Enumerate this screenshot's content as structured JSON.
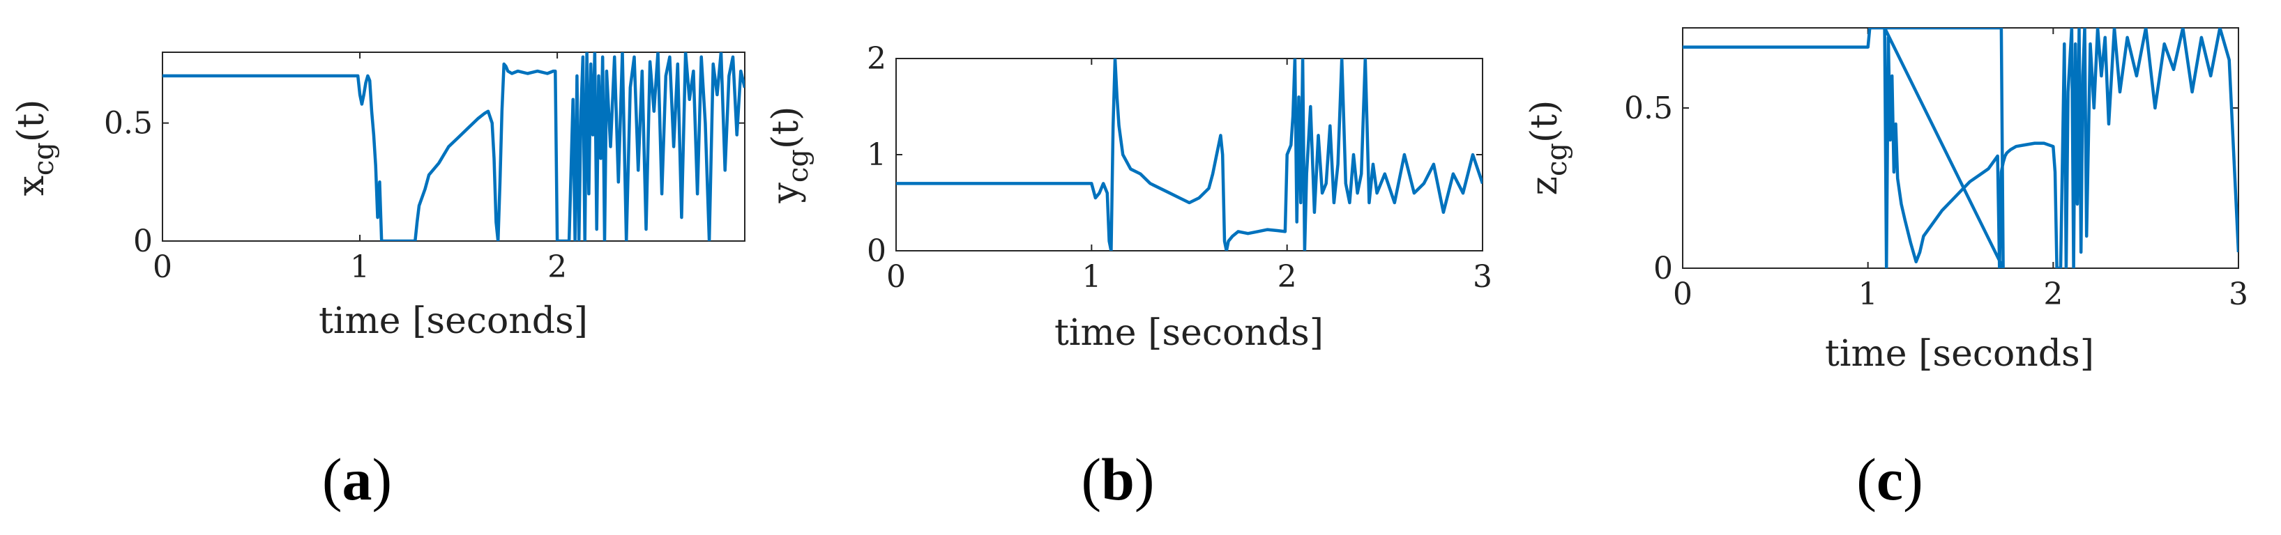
{
  "figure": {
    "colors": {
      "line": "#0072BD",
      "axis": "#262626",
      "text": "#222222"
    },
    "panel_labels": [
      {
        "open": "(",
        "letter": "a",
        "close": ")"
      },
      {
        "open": "(",
        "letter": "b",
        "close": ")"
      },
      {
        "open": "(",
        "letter": "c",
        "close": ")"
      }
    ]
  },
  "chart_data": [
    {
      "type": "line",
      "xlabel": "time [seconds]",
      "ylabel": {
        "var": "x",
        "sub": "cg",
        "arg": "(t)"
      },
      "xlim": [
        0,
        2.95
      ],
      "ylim": [
        0,
        0.8
      ],
      "xticks": [
        0,
        1,
        2
      ],
      "yticks": [
        0,
        0.5
      ],
      "series": [
        {
          "x": [
            0,
            0.99,
            1.0,
            1.01,
            1.02,
            1.03,
            1.04,
            1.05,
            1.06,
            1.07,
            1.08,
            1.09,
            1.1,
            1.11,
            1.12,
            1.15,
            1.2,
            1.25,
            1.28,
            1.29,
            1.3,
            1.33,
            1.35,
            1.4,
            1.45,
            1.5,
            1.55,
            1.6,
            1.63,
            1.65,
            1.67,
            1.68,
            1.69,
            1.7,
            1.71,
            1.72,
            1.73,
            1.74,
            1.75,
            1.77,
            1.8,
            1.85,
            1.9,
            1.95,
            1.98,
            1.99,
            2.0,
            2.02,
            2.04,
            2.05,
            2.06,
            2.07,
            2.08,
            2.09,
            2.1,
            2.11,
            2.12,
            2.13,
            2.14,
            2.15,
            2.16,
            2.17,
            2.18,
            2.19,
            2.2,
            2.21,
            2.22,
            2.23,
            2.24,
            2.25,
            2.27,
            2.29,
            2.31,
            2.33,
            2.35,
            2.37,
            2.39,
            2.41,
            2.43,
            2.45,
            2.47,
            2.49,
            2.51,
            2.53,
            2.55,
            2.57,
            2.59,
            2.61,
            2.63,
            2.65,
            2.67,
            2.69,
            2.71,
            2.73,
            2.75,
            2.77,
            2.79,
            2.81,
            2.83,
            2.85,
            2.87,
            2.89,
            2.91,
            2.93,
            2.95
          ],
          "y": [
            0.7,
            0.7,
            0.62,
            0.58,
            0.62,
            0.67,
            0.7,
            0.68,
            0.55,
            0.45,
            0.32,
            0.1,
            0.25,
            0.0,
            0.0,
            0.0,
            0.0,
            0.0,
            0.0,
            0.08,
            0.15,
            0.22,
            0.28,
            0.33,
            0.4,
            0.44,
            0.48,
            0.52,
            0.54,
            0.55,
            0.5,
            0.35,
            0.08,
            0.0,
            0.25,
            0.55,
            0.75,
            0.74,
            0.72,
            0.71,
            0.72,
            0.71,
            0.72,
            0.71,
            0.72,
            0.72,
            0.0,
            0.0,
            0.0,
            0.0,
            0.0,
            0.3,
            0.6,
            0.0,
            0.7,
            0.0,
            0.55,
            0.78,
            0.0,
            0.8,
            0.2,
            0.75,
            0.45,
            0.8,
            0.05,
            0.7,
            0.35,
            0.78,
            0.0,
            0.72,
            0.4,
            0.78,
            0.25,
            0.8,
            0.0,
            0.65,
            0.78,
            0.3,
            0.72,
            0.05,
            0.76,
            0.55,
            0.8,
            0.2,
            0.7,
            0.78,
            0.4,
            0.75,
            0.1,
            0.8,
            0.6,
            0.72,
            0.2,
            0.78,
            0.5,
            0.0,
            0.75,
            0.62,
            0.8,
            0.3,
            0.7,
            0.78,
            0.45,
            0.72,
            0.65
          ]
        }
      ]
    },
    {
      "type": "line",
      "xlabel": "time [seconds]",
      "ylabel": {
        "var": "y",
        "sub": "cg",
        "arg": "(t)"
      },
      "xlim": [
        0,
        3
      ],
      "ylim": [
        0,
        2
      ],
      "xticks": [
        0,
        1,
        2,
        3
      ],
      "yticks": [
        0,
        1,
        2
      ],
      "series": [
        {
          "x": [
            0,
            1.0,
            1.02,
            1.04,
            1.06,
            1.08,
            1.09,
            1.1,
            1.11,
            1.12,
            1.13,
            1.14,
            1.16,
            1.2,
            1.25,
            1.3,
            1.35,
            1.4,
            1.45,
            1.5,
            1.55,
            1.6,
            1.62,
            1.64,
            1.66,
            1.67,
            1.68,
            1.69,
            1.7,
            1.72,
            1.75,
            1.8,
            1.85,
            1.9,
            1.95,
            1.99,
            2.0,
            2.02,
            2.03,
            2.04,
            2.05,
            2.06,
            2.07,
            2.08,
            2.09,
            2.1,
            2.12,
            2.14,
            2.16,
            2.18,
            2.2,
            2.22,
            2.24,
            2.26,
            2.28,
            2.3,
            2.32,
            2.34,
            2.36,
            2.38,
            2.4,
            2.42,
            2.44,
            2.46,
            2.5,
            2.55,
            2.6,
            2.65,
            2.7,
            2.75,
            2.8,
            2.85,
            2.9,
            2.95,
            3.0
          ],
          "y": [
            0.7,
            0.7,
            0.55,
            0.6,
            0.7,
            0.6,
            0.1,
            0.0,
            1.3,
            2.0,
            1.6,
            1.3,
            1.0,
            0.85,
            0.8,
            0.7,
            0.65,
            0.6,
            0.55,
            0.5,
            0.55,
            0.65,
            0.8,
            1.0,
            1.2,
            1.0,
            0.1,
            0.0,
            0.1,
            0.15,
            0.2,
            0.18,
            0.2,
            0.22,
            0.21,
            0.2,
            1.0,
            1.1,
            1.4,
            2.0,
            0.3,
            1.6,
            0.5,
            2.0,
            0.0,
            0.8,
            1.5,
            0.4,
            1.2,
            0.6,
            0.7,
            1.3,
            0.5,
            0.9,
            2.0,
            0.7,
            0.5,
            1.0,
            0.6,
            0.8,
            2.0,
            0.5,
            0.9,
            0.6,
            0.8,
            0.5,
            1.0,
            0.6,
            0.7,
            0.9,
            0.4,
            0.8,
            0.6,
            1.0,
            0.7
          ]
        }
      ]
    },
    {
      "type": "line",
      "xlabel": "time [seconds]",
      "ylabel": {
        "var": "z",
        "sub": "cg",
        "arg": "(t)"
      },
      "xlim": [
        0,
        3
      ],
      "ylim": [
        0,
        0.75
      ],
      "xticks": [
        0,
        1,
        2,
        3
      ],
      "yticks": [
        0,
        0.5
      ],
      "series": [
        {
          "x": [
            0,
            1.0,
            1.01,
            1.72,
            1.73,
            1.09,
            1.1,
            1.11,
            1.12,
            1.13,
            1.14,
            1.15,
            1.16,
            1.18,
            1.2,
            1.23,
            1.26,
            1.28,
            1.3,
            1.35,
            1.4,
            1.45,
            1.5,
            1.55,
            1.6,
            1.65,
            1.7,
            1.71,
            1.72,
            1.73,
            1.74,
            1.75,
            1.77,
            1.8,
            1.85,
            1.9,
            1.95,
            2.0,
            2.01,
            2.02,
            2.04,
            2.06,
            2.07,
            2.08,
            2.1,
            2.11,
            2.12,
            2.13,
            2.14,
            2.15,
            2.16,
            2.17,
            2.18,
            2.2,
            2.22,
            2.24,
            2.26,
            2.28,
            2.3,
            2.33,
            2.36,
            2.4,
            2.45,
            2.5,
            2.55,
            2.6,
            2.65,
            2.7,
            2.75,
            2.8,
            2.85,
            2.9,
            2.95,
            3.0
          ],
          "y": [
            0.69,
            0.69,
            0.75,
            0.75,
            0.0,
            0.75,
            0.0,
            0.72,
            0.4,
            0.6,
            0.3,
            0.45,
            0.28,
            0.2,
            0.15,
            0.08,
            0.02,
            0.05,
            0.1,
            0.14,
            0.18,
            0.21,
            0.24,
            0.27,
            0.29,
            0.31,
            0.35,
            0.0,
            0.3,
            0.33,
            0.35,
            0.36,
            0.37,
            0.38,
            0.385,
            0.39,
            0.39,
            0.38,
            0.3,
            0.0,
            0.0,
            0.7,
            0.0,
            0.55,
            0.75,
            0.0,
            0.7,
            0.2,
            0.75,
            0.05,
            0.6,
            0.75,
            0.1,
            0.7,
            0.5,
            0.75,
            0.6,
            0.72,
            0.45,
            0.75,
            0.55,
            0.72,
            0.6,
            0.75,
            0.5,
            0.7,
            0.62,
            0.75,
            0.55,
            0.72,
            0.6,
            0.75,
            0.65,
            0.05
          ]
        }
      ]
    }
  ]
}
